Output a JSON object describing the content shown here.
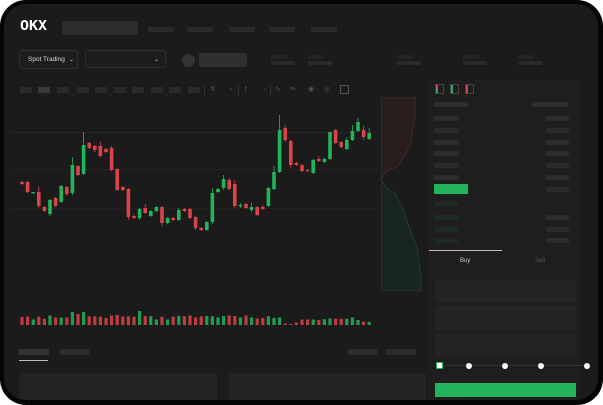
{
  "header": {
    "logo": "OKX",
    "market_select_label": "Spot Trading"
  },
  "order_form": {
    "tabs": [
      "Buy",
      "Sell"
    ],
    "active_tab": "Buy",
    "slider_percent": 0,
    "buy_button_color": "#23b35c"
  },
  "colors": {
    "up": "#23b35c",
    "down": "#d9434a",
    "background": "#1b1b1b"
  },
  "toolbar_icons": [
    "candle-type-icon",
    "indicator-icon",
    "line-tool-icon",
    "pencil-icon",
    "camera-icon",
    "settings-icon",
    "fullscreen-icon"
  ],
  "orderbook_view_icons": [
    "orderbook-both-icon",
    "orderbook-bids-icon",
    "orderbook-asks-icon"
  ],
  "chart_data": {
    "type": "candlestick",
    "candles": [
      [
        118,
        119,
        115,
        116
      ],
      [
        118,
        119,
        107,
        108
      ],
      [
        107,
        108,
        106,
        108
      ],
      [
        108,
        114,
        92,
        94
      ],
      [
        93,
        94,
        88,
        89
      ],
      [
        86,
        101,
        84,
        100
      ],
      [
        102,
        103,
        93,
        94
      ],
      [
        98,
        115,
        97,
        114
      ],
      [
        113,
        114,
        104,
        106
      ],
      [
        107,
        143,
        105,
        135
      ],
      [
        134,
        135,
        124,
        125
      ],
      [
        126,
        168,
        125,
        155
      ],
      [
        157,
        158,
        151,
        152
      ],
      [
        154,
        155,
        148,
        150
      ],
      [
        154,
        158,
        143,
        144
      ],
      [
        151,
        152,
        147,
        148
      ],
      [
        152,
        154,
        129,
        130
      ],
      [
        131,
        132,
        109,
        110
      ],
      [
        113,
        114,
        109,
        110
      ],
      [
        111,
        112,
        80,
        83
      ],
      [
        84,
        86,
        81,
        82
      ],
      [
        82,
        92,
        80,
        91
      ],
      [
        92,
        96,
        86,
        87
      ],
      [
        84,
        90,
        83,
        89
      ],
      [
        89,
        94,
        88,
        93
      ],
      [
        93,
        94,
        74,
        77
      ],
      [
        77,
        83,
        76,
        82
      ],
      [
        82,
        83,
        79,
        80
      ],
      [
        80,
        92,
        79,
        90
      ],
      [
        91,
        92,
        88,
        89
      ],
      [
        91,
        92,
        81,
        82
      ],
      [
        83,
        84,
        70,
        72
      ],
      [
        72,
        73,
        69,
        70
      ],
      [
        70,
        79,
        69,
        78
      ],
      [
        78,
        112,
        76,
        107
      ],
      [
        108,
        112,
        107,
        111
      ],
      [
        112,
        125,
        110,
        121
      ],
      [
        120,
        122,
        110,
        111
      ],
      [
        116,
        120,
        92,
        94
      ],
      [
        94,
        97,
        92,
        95
      ],
      [
        96,
        97,
        91,
        92
      ],
      [
        90,
        97,
        88,
        93
      ],
      [
        93,
        94,
        84,
        85
      ],
      [
        93,
        95,
        90,
        91
      ],
      [
        94,
        113,
        93,
        112
      ],
      [
        111,
        134,
        110,
        128
      ],
      [
        128,
        185,
        127,
        170
      ],
      [
        172,
        175,
        158,
        160
      ],
      [
        159,
        160,
        132,
        135
      ],
      [
        137,
        138,
        134,
        135
      ],
      [
        135,
        136,
        128,
        129
      ],
      [
        130,
        131,
        128,
        129
      ],
      [
        127,
        141,
        126,
        140
      ],
      [
        141,
        144,
        138,
        139
      ],
      [
        138,
        142,
        137,
        141
      ],
      [
        141,
        168,
        140,
        168
      ],
      [
        170,
        171,
        156,
        157
      ],
      [
        158,
        159,
        152,
        153
      ],
      [
        151,
        163,
        150,
        160
      ],
      [
        160,
        175,
        159,
        169
      ],
      [
        169,
        182,
        168,
        178
      ],
      [
        170,
        174,
        160,
        163
      ],
      [
        161,
        172,
        160,
        167
      ]
    ],
    "volume": [
      32,
      34,
      22,
      33,
      25,
      38,
      30,
      30,
      30,
      52,
      44,
      52,
      35,
      35,
      33,
      28,
      38,
      40,
      34,
      35,
      33,
      56,
      36,
      35,
      22,
      33,
      22,
      33,
      36,
      35,
      38,
      30,
      35,
      36,
      35,
      30,
      36,
      38,
      36,
      30,
      38,
      30,
      26,
      28,
      35,
      28,
      30,
      6,
      4,
      10,
      22,
      22,
      22,
      20,
      23,
      26,
      25,
      25,
      25,
      30,
      20,
      14,
      12
    ]
  }
}
